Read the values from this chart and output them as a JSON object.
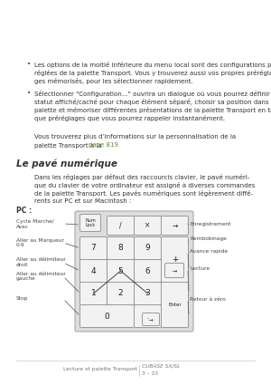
{
  "bg_color": "#ffffff",
  "bullet1": "Les options de la moitié inférieure du menu local sont des configurations pré-\nréglées de la palette Transport. Vous y trouverez aussi vos propres prérégla-\nges mémorisés, pour les sélectionner rapidement.",
  "bullet2": "Sélectionner \"Configuration…\" ouvrira un dialogue où vous pourrez définir le\nstatut affiché/caché pour chaque élément séparé, choisir sa position dans la\npalette et mémoriser différentes présentations de la palette Transport en tant\nque préréglages que vous pourrez rappeler instantanément.",
  "body_line1": "Vous trouverez plus d’informations sur la personnalisation de la",
  "body_line2_pre": "palette Transport à la ",
  "body_link": "page 819",
  "body_line2_post": ".",
  "section_title": "Le pavé numérique",
  "section_body": "Dans les réglages par défaut des raccourcis clavier, le pavé numéri-\nque du clavier de votre ordinateur est assigné à diverses commandes\nde la palette Transport. Les pavés numériques sont légèrement diffé-\nrents sur PC et sur Macintosh :",
  "pc_label": "PC :",
  "left_labels": [
    "Cycle Marche/\nAvec",
    "Aller au Marqueur\n0-9",
    "Aller au délimiteur\ndroit",
    "Aller au délimiteur\ngauche",
    "Stop"
  ],
  "right_labels": [
    "Enregistrement",
    "Rembobinage",
    "Avance rapide",
    "Lecture",
    "Retour à zéro"
  ],
  "footer_left": "Lecture et palette Transport",
  "footer_right_top": "CUBASE SX/SL",
  "footer_right_bot": "3 – 33",
  "link_color": "#5a8a2a",
  "text_color": "#333333",
  "label_color": "#444444"
}
